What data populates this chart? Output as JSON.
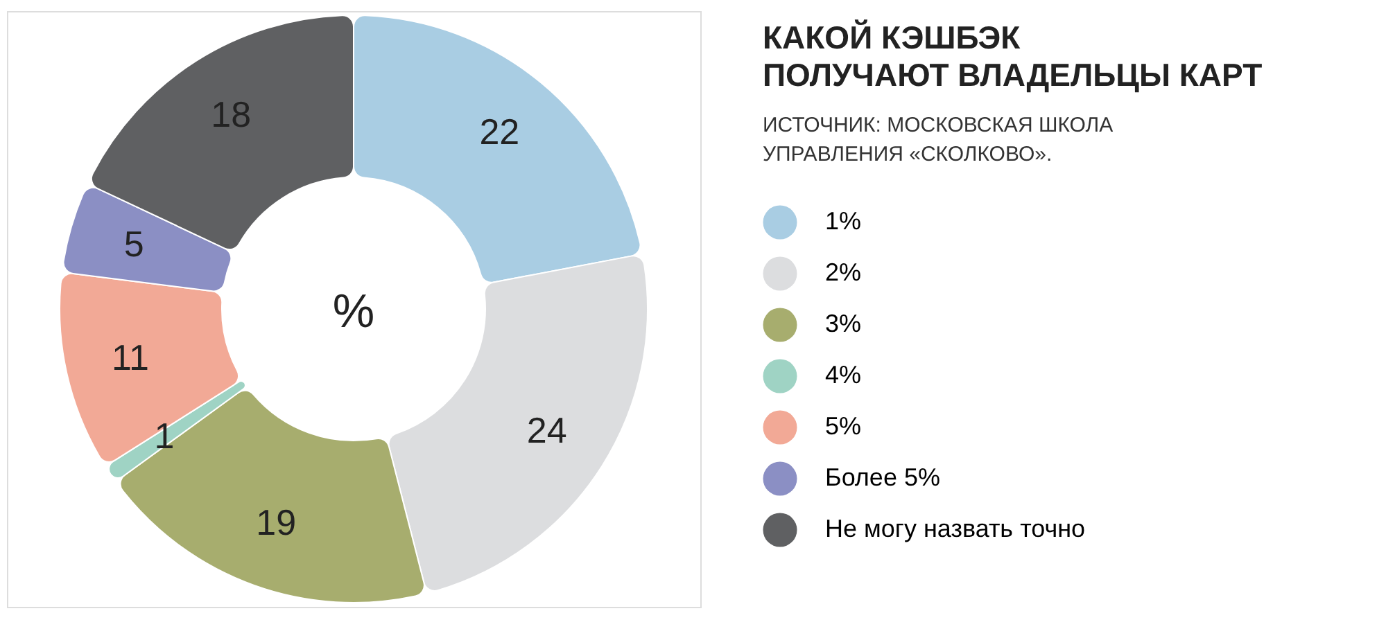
{
  "chart_data": {
    "type": "donut",
    "title": "КАКОЙ КЭШБЭК\nПОЛУЧАЮТ ВЛАДЕЛЬЦЫ КАРТ",
    "subtitle": "ИСТОЧНИК: МОСКОВСКАЯ ШКОЛА\nУПРАВЛЕНИЯ «СКОЛКОВО».",
    "categories": [
      "1%",
      "2%",
      "3%",
      "4%",
      "5%",
      "Более 5%",
      "Не могу назвать точно"
    ],
    "values": [
      22,
      24,
      19,
      1,
      11,
      5,
      18
    ],
    "colors": [
      "#a9cde3",
      "#dcdddf",
      "#a7ad6e",
      "#9fd3c4",
      "#f2a996",
      "#8b8fc4",
      "#5f6062"
    ],
    "data_labels": true,
    "legend": "right",
    "annotations": [
      "%"
    ]
  }
}
